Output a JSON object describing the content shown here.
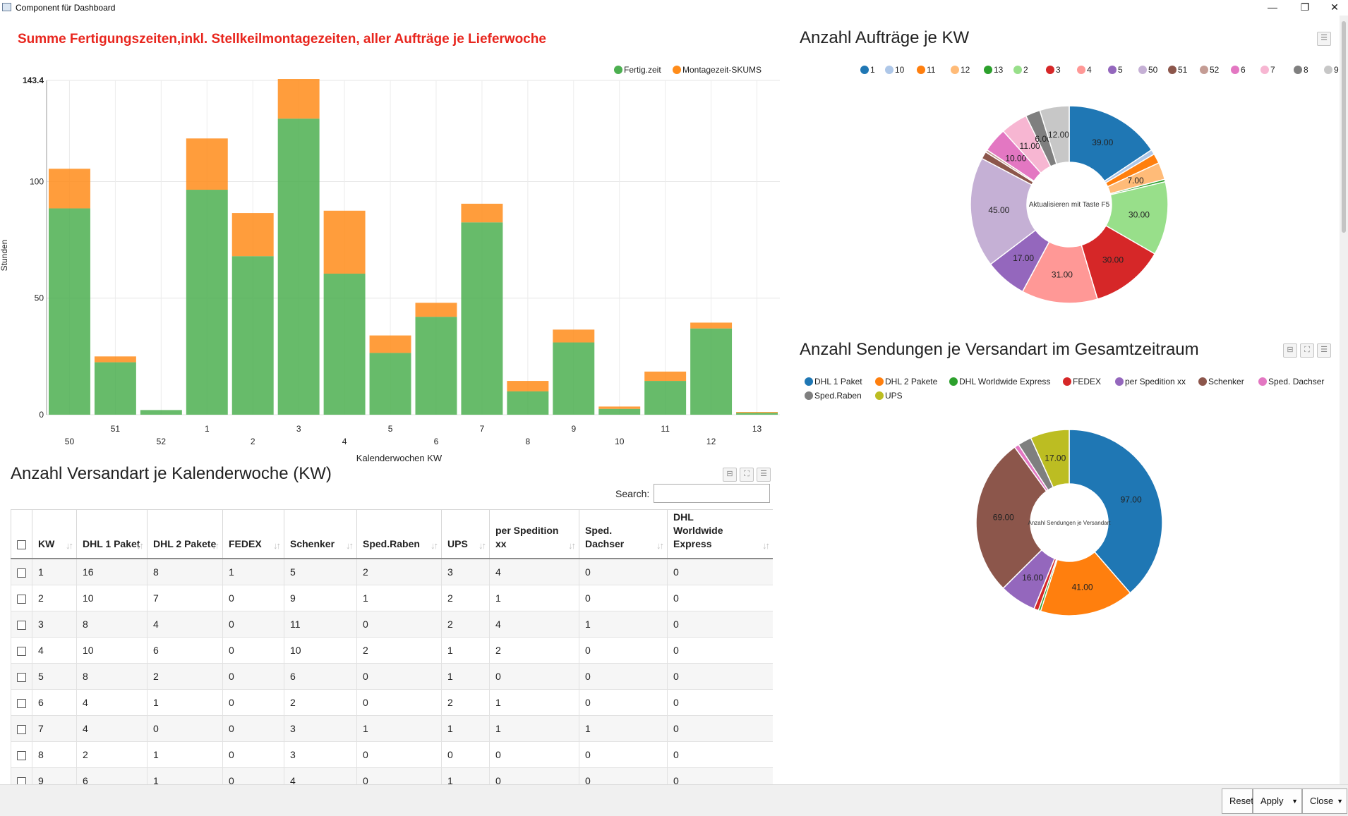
{
  "window": {
    "title": "Component für Dashboard",
    "minimize_glyph": "—",
    "restore_glyph": "❐",
    "close_glyph": "✕"
  },
  "bar_widget": {
    "title": "Summe Fertigungszeiten,inkl. Stellkeilmontagezeiten, aller Aufträge je Lieferwoche",
    "xlabel": "Kalenderwochen KW",
    "ylabel": "Stunden"
  },
  "orders_widget": {
    "title": "Anzahl Aufträge je KW",
    "center_label": "Aktualisieren mit Taste F5"
  },
  "shipments_widget": {
    "title": "Anzahl Sendungen je Versandart im Gesamtzeitraum",
    "center_label": "Anzahl Sendungen je Versandart"
  },
  "table_widget": {
    "title": "Anzahl Versandart je Kalenderwoche (KW)",
    "search_label": "Search:",
    "search_value": "",
    "columns": [
      {
        "label": "KW"
      },
      {
        "label": "DHL 1 Paket"
      },
      {
        "label": "DHL 2 Pakete"
      },
      {
        "label": "FEDEX"
      },
      {
        "label": "Schenker"
      },
      {
        "label": "Sped.Raben"
      },
      {
        "label": "UPS"
      },
      {
        "label": "per Spedition xx"
      },
      {
        "label": "Sped. Dachser"
      },
      {
        "label": "DHL Worldwide Express"
      }
    ],
    "rows": [
      [
        "1",
        "16",
        "8",
        "1",
        "5",
        "2",
        "3",
        "4",
        "0",
        "0"
      ],
      [
        "2",
        "10",
        "7",
        "0",
        "9",
        "1",
        "2",
        "1",
        "0",
        "0"
      ],
      [
        "3",
        "8",
        "4",
        "0",
        "11",
        "0",
        "2",
        "4",
        "1",
        "0"
      ],
      [
        "4",
        "10",
        "6",
        "0",
        "10",
        "2",
        "1",
        "2",
        "0",
        "0"
      ],
      [
        "5",
        "8",
        "2",
        "0",
        "6",
        "0",
        "1",
        "0",
        "0",
        "0"
      ],
      [
        "6",
        "4",
        "1",
        "0",
        "2",
        "0",
        "2",
        "1",
        "0",
        "0"
      ],
      [
        "7",
        "4",
        "0",
        "0",
        "3",
        "1",
        "1",
        "1",
        "1",
        "0"
      ],
      [
        "8",
        "2",
        "1",
        "0",
        "3",
        "0",
        "0",
        "0",
        "0",
        "0"
      ],
      [
        "9",
        "6",
        "1",
        "0",
        "4",
        "0",
        "1",
        "0",
        "0",
        "0"
      ]
    ],
    "sort_glyph": "↓↑"
  },
  "footer": {
    "buttons": [
      {
        "label": "Reset",
        "dropdown": false
      },
      {
        "label": "Apply",
        "dropdown": true
      },
      {
        "label": "Close",
        "dropdown": true
      }
    ]
  },
  "icons": {
    "collapse": "⊟",
    "expand": "⛶",
    "menu": "☰",
    "dropdown": "▼"
  },
  "chart_data": [
    {
      "type": "bar",
      "stacked": true,
      "title": "Summe Fertigungszeiten,inkl. Stellkeilmontagezeiten, aller Aufträge je Lieferwoche",
      "xlabel": "Kalenderwochen KW",
      "ylabel": "Stunden",
      "categories": [
        "50",
        "51",
        "52",
        "1",
        "2",
        "3",
        "4",
        "5",
        "6",
        "7",
        "8",
        "9",
        "10",
        "11",
        "12",
        "13"
      ],
      "series": [
        {
          "name": "Fertig.zeit",
          "color": "#4caf50",
          "values": [
            88.5,
            22.5,
            2,
            96.5,
            68,
            127,
            60.5,
            26.5,
            42,
            82.5,
            10,
            31,
            2.5,
            14.5,
            37,
            0.8
          ]
        },
        {
          "name": "Montagezeit-SKUMS",
          "color": "#ff8c1a",
          "values": [
            17,
            2.5,
            0,
            22,
            18.5,
            17,
            27,
            7.5,
            6,
            8,
            4.5,
            5.5,
            1,
            4,
            2.5,
            0.4
          ]
        }
      ],
      "ylim": [
        0,
        143.4
      ],
      "yticks": [
        "0",
        "50",
        "100",
        "143.4"
      ],
      "grid": true,
      "legend": "top-right"
    },
    {
      "type": "pie",
      "donut": true,
      "title": "Anzahl Aufträge je KW",
      "legend": "top",
      "slices": [
        {
          "label": "1",
          "value": 39,
          "color": "#1f77b4",
          "show": "39.00"
        },
        {
          "label": "10",
          "value": 2,
          "color": "#aec7e8",
          "show": ""
        },
        {
          "label": "11",
          "value": 4,
          "color": "#ff7f0e",
          "show": ""
        },
        {
          "label": "12",
          "value": 7,
          "color": "#ffbb78",
          "show": "7.00"
        },
        {
          "label": "13",
          "value": 1,
          "color": "#2ca02c",
          "show": ""
        },
        {
          "label": "2",
          "value": 30,
          "color": "#98df8a",
          "show": "30.00"
        },
        {
          "label": "3",
          "value": 30,
          "color": "#d62728",
          "show": "30.00"
        },
        {
          "label": "4",
          "value": 31,
          "color": "#ff9896",
          "show": "31.00"
        },
        {
          "label": "5",
          "value": 17,
          "color": "#9467bd",
          "show": "17.00"
        },
        {
          "label": "50",
          "value": 45,
          "color": "#c5b0d5",
          "show": "45.00"
        },
        {
          "label": "51",
          "value": 3,
          "color": "#8c564b",
          "show": ""
        },
        {
          "label": "52",
          "value": 1,
          "color": "#c49c94",
          "show": ""
        },
        {
          "label": "6",
          "value": 10,
          "color": "#e377c2",
          "show": "10.00"
        },
        {
          "label": "7",
          "value": 11,
          "color": "#f7b6d2",
          "show": "11.00"
        },
        {
          "label": "8",
          "value": 6,
          "color": "#7f7f7f",
          "show": "6.00"
        },
        {
          "label": "9",
          "value": 12,
          "color": "#c7c7c7",
          "show": "12.00"
        }
      ]
    },
    {
      "type": "pie",
      "donut": true,
      "title": "Anzahl Sendungen je Versandart im Gesamtzeitraum",
      "legend": "top",
      "slices": [
        {
          "label": "DHL 1 Paket",
          "value": 97,
          "color": "#1f77b4",
          "show": "97.00"
        },
        {
          "label": "DHL 2 Pakete",
          "value": 41,
          "color": "#ff7f0e",
          "show": "41.00"
        },
        {
          "label": "DHL Worldwide Express",
          "value": 1,
          "color": "#2ca02c",
          "show": ""
        },
        {
          "label": "FEDEX",
          "value": 2,
          "color": "#d62728",
          "show": ""
        },
        {
          "label": "per Spedition xx",
          "value": 16,
          "color": "#9467bd",
          "show": "16.00"
        },
        {
          "label": "Schenker",
          "value": 69,
          "color": "#8c564b",
          "show": "69.00"
        },
        {
          "label": "Sped. Dachser",
          "value": 2,
          "color": "#e377c2",
          "show": ""
        },
        {
          "label": "Sped.Raben",
          "value": 6,
          "color": "#7f7f7f",
          "show": ""
        },
        {
          "label": "UPS",
          "value": 17,
          "color": "#bcbd22",
          "show": "17.00"
        }
      ]
    }
  ]
}
